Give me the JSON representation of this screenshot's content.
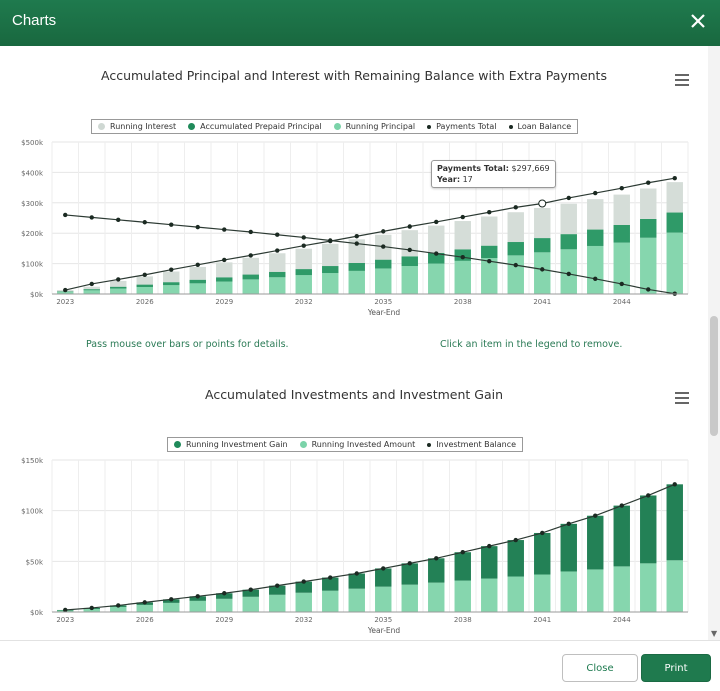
{
  "window": {
    "title": "Charts"
  },
  "charts": [
    {
      "title": "Accumulated Principal and Interest with Remaining Balance with Extra Payments",
      "legend": [
        {
          "label": "Running Interest",
          "color": "#cfd8d3"
        },
        {
          "label": "Accumulated Prepaid Principal",
          "color": "#1f8a5a"
        },
        {
          "label": "Running Principal",
          "color": "#7bd3a9"
        },
        {
          "label": "Payments Total",
          "color": "#1b2a22"
        },
        {
          "label": "Loan Balance",
          "color": "#1b2a22"
        }
      ],
      "tooltip": {
        "line1_label": "Payments Total:",
        "line1_value": "$297,669",
        "line2_label": "Year:",
        "line2_value": "17"
      },
      "hints": {
        "left": "Pass mouse over bars or points for details.",
        "right": "Click an item in the legend to remove."
      }
    },
    {
      "title": "Accumulated Investments and Investment Gain",
      "legend": [
        {
          "label": "Running Investment Gain",
          "color": "#1f8a5a"
        },
        {
          "label": "Running Invested Amount",
          "color": "#7bd3a9"
        },
        {
          "label": "Investment Balance",
          "color": "#1b2a22"
        }
      ]
    }
  ],
  "chart_data": [
    {
      "type": "bar",
      "title": "Accumulated Principal and Interest with Remaining Balance with Extra Payments",
      "xlabel": "Year-End",
      "ylabel": "",
      "ylim": [
        0,
        500000
      ],
      "yticks": [
        "$0k",
        "$100k",
        "$200k",
        "$300k",
        "$400k",
        "$500k"
      ],
      "x": [
        2023,
        2024,
        2025,
        2026,
        2027,
        2028,
        2029,
        2030,
        2031,
        2032,
        2033,
        2034,
        2035,
        2036,
        2037,
        2038,
        2039,
        2040,
        2041,
        2042,
        2043,
        2044,
        2045,
        2046
      ],
      "xtick_labels": [
        "2023",
        "2026",
        "2029",
        "2032",
        "2035",
        "2038",
        "2041",
        "2044"
      ],
      "series": [
        {
          "name": "Running Principal",
          "kind": "bar",
          "values": [
            7000,
            12000,
            18000,
            23000,
            29000,
            35000,
            41000,
            48000,
            55000,
            62000,
            69000,
            76000,
            84000,
            92000,
            100000,
            109000,
            118000,
            127000,
            137000,
            147000,
            158000,
            169000,
            185000,
            202000
          ]
        },
        {
          "name": "Accumulated Prepaid Principal",
          "kind": "bar",
          "values": [
            2000,
            4000,
            6000,
            8000,
            10000,
            12000,
            14000,
            16000,
            18000,
            20000,
            23000,
            26000,
            29000,
            32000,
            35000,
            38000,
            41000,
            44000,
            47000,
            50000,
            54000,
            58000,
            62000,
            66000
          ]
        },
        {
          "name": "Running Interest",
          "kind": "bar",
          "values": [
            4000,
            8000,
            19000,
            27000,
            35000,
            42000,
            49000,
            55000,
            61000,
            67000,
            73000,
            78000,
            82000,
            86000,
            90000,
            93000,
            96000,
            98000,
            99000,
            100000,
            100000,
            100000,
            100000,
            100000
          ]
        },
        {
          "name": "Payments Total",
          "kind": "line",
          "values": [
            13000,
            33000,
            48000,
            63000,
            80000,
            96000,
            112000,
            127000,
            143000,
            159000,
            174000,
            190000,
            206000,
            222000,
            237000,
            253000,
            269000,
            285000,
            297669,
            316000,
            332000,
            348000,
            366000,
            381000
          ]
        },
        {
          "name": "Loan Balance",
          "kind": "line",
          "values": [
            260000,
            252000,
            244000,
            236000,
            228000,
            220000,
            212000,
            204000,
            195000,
            186000,
            176000,
            166000,
            156000,
            145000,
            133000,
            121000,
            108000,
            95000,
            81000,
            66000,
            50000,
            33000,
            15000,
            1000
          ]
        }
      ]
    },
    {
      "type": "bar",
      "title": "Accumulated Investments and Investment Gain",
      "xlabel": "Year-End",
      "ylabel": "",
      "ylim": [
        0,
        150000
      ],
      "yticks": [
        "$0k",
        "$50k",
        "$100k",
        "$150k"
      ],
      "x": [
        2023,
        2024,
        2025,
        2026,
        2027,
        2028,
        2029,
        2030,
        2031,
        2032,
        2033,
        2034,
        2035,
        2036,
        2037,
        2038,
        2039,
        2040,
        2041,
        2042,
        2043,
        2044,
        2045,
        2046
      ],
      "xtick_labels": [
        "2023",
        "2026",
        "2029",
        "2032",
        "2035",
        "2038",
        "2041",
        "2044"
      ],
      "series": [
        {
          "name": "Running Invested Amount",
          "kind": "bar",
          "values": [
            1500,
            3000,
            5000,
            7000,
            9000,
            11000,
            13000,
            15000,
            17000,
            19000,
            21000,
            23000,
            25000,
            27000,
            29000,
            31000,
            33000,
            35000,
            37000,
            40000,
            42000,
            45000,
            48000,
            51000
          ]
        },
        {
          "name": "Running Investment Gain",
          "kind": "bar",
          "values": [
            500,
            1000,
            1500,
            2500,
            3500,
            4500,
            5500,
            7000,
            9000,
            11000,
            13000,
            15000,
            18000,
            21000,
            24000,
            28000,
            32000,
            36000,
            41000,
            47000,
            53000,
            60000,
            67000,
            75000
          ]
        },
        {
          "name": "Investment Balance",
          "kind": "line",
          "values": [
            2000,
            4000,
            6500,
            9500,
            12500,
            15500,
            18500,
            22000,
            26000,
            30000,
            34000,
            38000,
            43000,
            48000,
            53000,
            59000,
            65000,
            71000,
            78000,
            87000,
            95000,
            105000,
            115000,
            126000
          ]
        }
      ]
    }
  ],
  "footer": {
    "close_label": "Close",
    "print_label": "Print"
  }
}
